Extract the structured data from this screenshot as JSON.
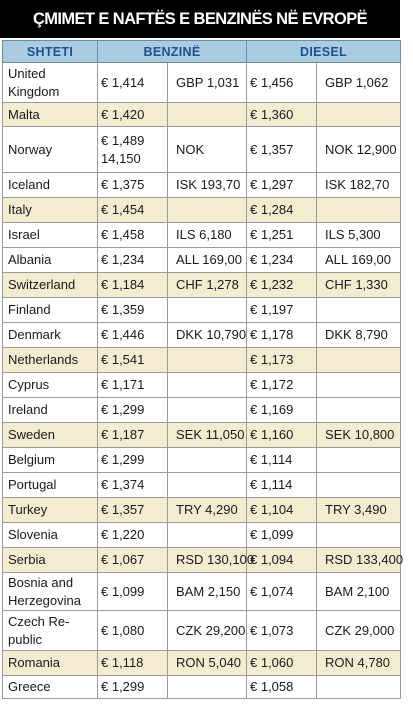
{
  "title": "ÇMIMET E NAFTËS E BENZINËS NË EVROPË",
  "headers": {
    "country": "SHTETI",
    "petrol": "BENZINË",
    "diesel": "DIESEL"
  },
  "rows": [
    {
      "country": "United Kingdom",
      "petrol_eur": "€ 1,414",
      "petrol_local": "GBP 1,031",
      "diesel_eur": "€ 1,456",
      "diesel_local": "GBP 1,062"
    },
    {
      "country": "Malta",
      "petrol_eur": "€ 1,420",
      "petrol_local": "",
      "diesel_eur": "€ 1,360",
      "diesel_local": ""
    },
    {
      "country": "Norway",
      "petrol_eur": "€ 1,489 14,150",
      "petrol_local": "NOK",
      "diesel_eur": "€ 1,357",
      "diesel_local": "NOK 12,900"
    },
    {
      "country": "Iceland",
      "petrol_eur": "€ 1,375",
      "petrol_local": "ISK 193,70",
      "diesel_eur": "€ 1,297",
      "diesel_local": "ISK 182,70"
    },
    {
      "country": "Italy",
      "petrol_eur": "€ 1,454",
      "petrol_local": "",
      "diesel_eur": "€ 1,284",
      "diesel_local": ""
    },
    {
      "country": "Israel",
      "petrol_eur": "€ 1,458",
      "petrol_local": "ILS 6,180",
      "diesel_eur": "€ 1,251",
      "diesel_local": "ILS 5,300"
    },
    {
      "country": "Albania",
      "petrol_eur": "€ 1,234",
      "petrol_local": "ALL 169,00",
      "diesel_eur": "€ 1,234",
      "diesel_local": "ALL 169,00"
    },
    {
      "country": "Switzerland",
      "petrol_eur": "€ 1,184",
      "petrol_local": "CHF 1,278",
      "diesel_eur": "€ 1,232",
      "diesel_local": "CHF 1,330"
    },
    {
      "country": "Finland",
      "petrol_eur": "€ 1,359",
      "petrol_local": "",
      "diesel_eur": "€ 1,197",
      "diesel_local": ""
    },
    {
      "country": "Denmark",
      "petrol_eur": "€ 1,446",
      "petrol_local": "DKK 10,790",
      "diesel_eur": "€ 1,178",
      "diesel_local": "DKK 8,790"
    },
    {
      "country": "Netherlands",
      "petrol_eur": "€ 1,541",
      "petrol_local": "",
      "diesel_eur": "€ 1,173",
      "diesel_local": ""
    },
    {
      "country": "Cyprus",
      "petrol_eur": "€ 1,171",
      "petrol_local": "",
      "diesel_eur": "€ 1,172",
      "diesel_local": ""
    },
    {
      "country": "Ireland",
      "petrol_eur": "€ 1,299",
      "petrol_local": "",
      "diesel_eur": "€ 1,169",
      "diesel_local": ""
    },
    {
      "country": "Sweden",
      "petrol_eur": "€ 1,187",
      "petrol_local": "SEK 11,050",
      "diesel_eur": "€ 1,160",
      "diesel_local": "SEK 10,800"
    },
    {
      "country": "Belgium",
      "petrol_eur": "€ 1,299",
      "petrol_local": "",
      "diesel_eur": "€ 1,114",
      "diesel_local": ""
    },
    {
      "country": "Portugal",
      "petrol_eur": "€ 1,374",
      "petrol_local": "",
      "diesel_eur": "€ 1,114",
      "diesel_local": ""
    },
    {
      "country": "Turkey",
      "petrol_eur": "€ 1,357",
      "petrol_local": "TRY 4,290",
      "diesel_eur": "€ 1,104",
      "diesel_local": "TRY 3,490"
    },
    {
      "country": "Slovenia",
      "petrol_eur": "€ 1,220",
      "petrol_local": "",
      "diesel_eur": "€ 1,099",
      "diesel_local": ""
    },
    {
      "country": "Serbia",
      "petrol_eur": "€ 1,067",
      "petrol_local": "RSD 130,100",
      "diesel_eur": "€ 1,094",
      "diesel_local": "RSD 133,400"
    },
    {
      "country": "Bosnia and Herzegovina",
      "petrol_eur": "€ 1,099",
      "petrol_local": "BAM 2,150",
      "diesel_eur": "€ 1,074",
      "diesel_local": "BAM 2,100"
    },
    {
      "country": "Czech Re-public",
      "petrol_eur": "€ 1,080",
      "petrol_local": "CZK 29,200",
      "diesel_eur": "€ 1,073",
      "diesel_local": "CZK 29,000"
    },
    {
      "country": "Romania",
      "petrol_eur": "€ 1,118",
      "petrol_local": "RON 5,040",
      "diesel_eur": "€ 1,060",
      "diesel_local": "RON 4,780"
    },
    {
      "country": "Greece",
      "petrol_eur": "€ 1,299",
      "petrol_local": "",
      "diesel_eur": "€ 1,058",
      "diesel_local": ""
    }
  ]
}
